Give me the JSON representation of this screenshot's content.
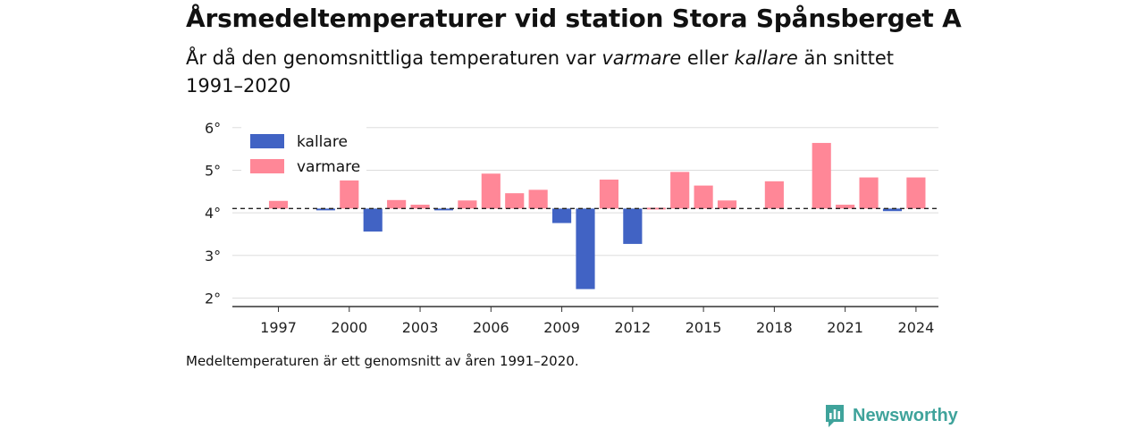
{
  "title": "Årsmedeltemperaturer vid station Stora Spånsberget A",
  "subtitle": {
    "part1": "År då den genomsnittliga temperaturen var ",
    "warm_word": "varmare",
    "part2": " eller ",
    "cold_word": "kallare",
    "part3": " än snittet 1991–2020"
  },
  "note": "Medeltemperaturen är ett genomsnitt av åren 1991–2020.",
  "brand": "Newsworthy",
  "colors": {
    "kallare": "#4163c4",
    "varmare": "#ff8797",
    "grid": "#dddddd",
    "axis": "#333333",
    "brand": "#3fa39b"
  },
  "chart_data": {
    "type": "bar",
    "baseline": 4.1,
    "ylim": [
      1.8,
      6.1
    ],
    "yticks": [
      2,
      3,
      4,
      5,
      6
    ],
    "ytick_labels": [
      "2°",
      "3°",
      "4°",
      "5°",
      "6°"
    ],
    "xticks": [
      1997,
      2000,
      2003,
      2006,
      2009,
      2012,
      2015,
      2018,
      2021,
      2024
    ],
    "legend": {
      "placement": "top-left",
      "entries": [
        "kallare",
        "varmare"
      ]
    },
    "years": [
      1996,
      1997,
      1998,
      1999,
      2000,
      2001,
      2002,
      2003,
      2004,
      2005,
      2006,
      2007,
      2008,
      2009,
      2010,
      2011,
      2012,
      2013,
      2014,
      2015,
      2016,
      2017,
      2018,
      2019,
      2020,
      2021,
      2022,
      2023,
      2024
    ],
    "values": [
      null,
      4.28,
      null,
      4.06,
      4.76,
      3.56,
      4.3,
      4.19,
      4.08,
      4.29,
      4.92,
      4.46,
      4.54,
      3.76,
      2.21,
      4.78,
      3.27,
      4.12,
      4.96,
      4.64,
      4.29,
      null,
      4.74,
      null,
      5.64,
      4.19,
      4.83,
      4.04,
      4.83
    ]
  }
}
